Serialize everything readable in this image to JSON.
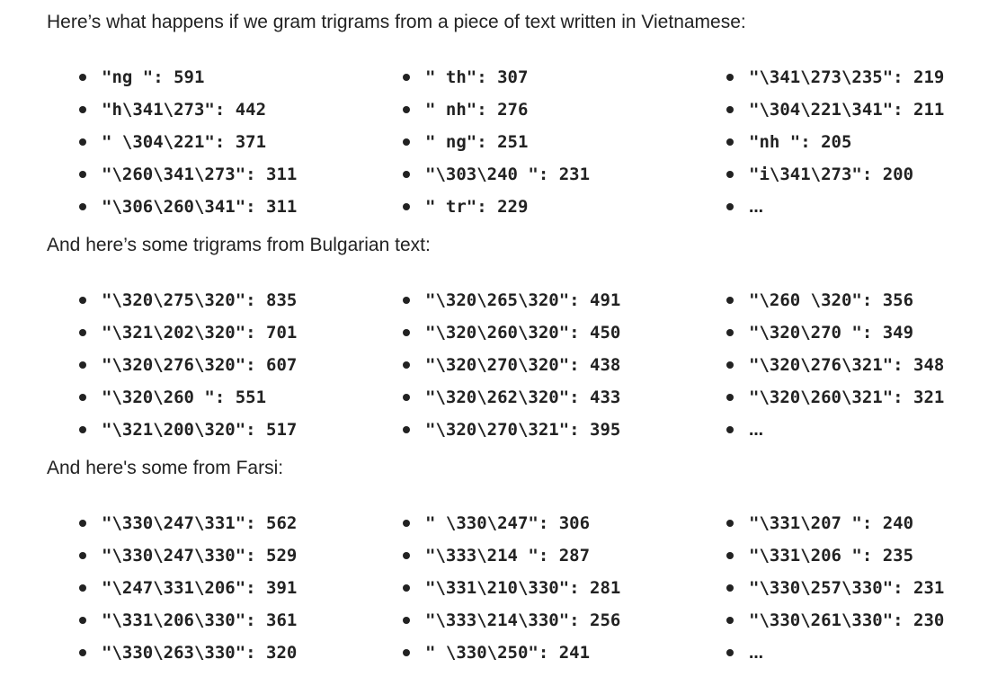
{
  "sections": [
    {
      "intro": "Here’s what happens if we gram trigrams from a piece of text written in Vietnamese:",
      "columns": [
        [
          "\"ng \": 591",
          "\"h\\341\\273\": 442",
          "\" \\304\\221\": 371",
          "\"\\260\\341\\273\": 311",
          "\"\\306\\260\\341\": 311"
        ],
        [
          "\" th\": 307",
          "\" nh\": 276",
          "\" ng\": 251",
          "\"\\303\\240 \": 231",
          "\" tr\": 229"
        ],
        [
          "\"\\341\\273\\235\": 219",
          "\"\\304\\221\\341\": 211",
          "\"nh \": 205",
          "\"i\\341\\273\": 200",
          "…"
        ]
      ]
    },
    {
      "intro": "And here’s some trigrams from Bulgarian text:",
      "columns": [
        [
          "\"\\320\\275\\320\": 835",
          "\"\\321\\202\\320\": 701",
          "\"\\320\\276\\320\": 607",
          "\"\\320\\260 \": 551",
          "\"\\321\\200\\320\": 517"
        ],
        [
          "\"\\320\\265\\320\": 491",
          "\"\\320\\260\\320\": 450",
          "\"\\320\\270\\320\": 438",
          "\"\\320\\262\\320\": 433",
          "\"\\320\\270\\321\": 395"
        ],
        [
          "\"\\260 \\320\": 356",
          "\"\\320\\270 \": 349",
          "\"\\320\\276\\321\": 348",
          "\"\\320\\260\\321\": 321",
          "…"
        ]
      ]
    },
    {
      "intro": "And here's some from Farsi:",
      "columns": [
        [
          "\"\\330\\247\\331\": 562",
          "\"\\330\\247\\330\": 529",
          "\"\\247\\331\\206\": 391",
          "\"\\331\\206\\330\": 361",
          "\"\\330\\263\\330\": 320"
        ],
        [
          "\" \\330\\247\": 306",
          "\"\\333\\214 \": 287",
          "\"\\331\\210\\330\": 281",
          "\"\\333\\214\\330\": 256",
          "\" \\330\\250\": 241"
        ],
        [
          "\"\\331\\207 \": 240",
          "\"\\331\\206 \": 235",
          "\"\\330\\257\\330\": 231",
          "\"\\330\\261\\330\": 230",
          "…"
        ]
      ]
    }
  ]
}
